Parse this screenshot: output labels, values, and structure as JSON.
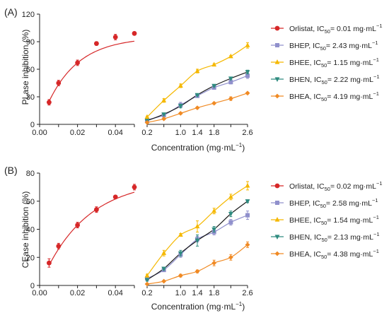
{
  "figure": {
    "panels": [
      {
        "tag": "(A)",
        "ylabel": "PLase inhibition (%)",
        "xlabel_main": "Concentration (mg·mL",
        "xlabel_sup": "−1",
        "xlabel_close": ")",
        "left_xticks": [
          "0.00",
          "0.02",
          "0.04"
        ],
        "right_xticks": [
          "0.2",
          "1.0",
          "1.4",
          "1.8",
          "2.6"
        ],
        "yticks": [
          "0",
          "30",
          "60",
          "90",
          "120"
        ],
        "legend": [
          {
            "name": "Orlistat",
            "ic50": "0.01"
          },
          {
            "name": "BHEP",
            "ic50": "2.43"
          },
          {
            "name": "BHEE",
            "ic50": "1.15"
          },
          {
            "name": "BHEN",
            "ic50": "2.22"
          },
          {
            "name": "BHEA",
            "ic50": "4.19"
          }
        ]
      },
      {
        "tag": "(B)",
        "ylabel": "CEase inhibition (%)",
        "xlabel_main": "Concentration (mg·mL",
        "xlabel_sup": "−1",
        "xlabel_close": ")",
        "left_xticks": [
          "0.00",
          "0.02",
          "0.04"
        ],
        "right_xticks": [
          "0.2",
          "1.0",
          "1.4",
          "1.8",
          "2.6"
        ],
        "yticks": [
          "0",
          "20",
          "40",
          "60",
          "80"
        ],
        "legend": [
          {
            "name": "Orlistat",
            "ic50": "0.02"
          },
          {
            "name": "BHEP",
            "ic50": "2.58"
          },
          {
            "name": "BHEE",
            "ic50": "1.54"
          },
          {
            "name": "BHEN",
            "ic50": "2.13"
          },
          {
            "name": "BHEA",
            "ic50": "4.38"
          }
        ]
      }
    ],
    "ic50_prefix": "IC",
    "ic50_sub": "50",
    "ic50_unit": "= ",
    "ic50_suffix": " mg·mL",
    "ic50_sup": "−1"
  },
  "chart_data": [
    {
      "type": "scatter",
      "panel": "(A)",
      "ylabel": "PLase inhibition (%)",
      "xlabel": "Concentration (mg·mL−1)",
      "ylim": [
        0,
        120
      ],
      "left_xlim": [
        0,
        0.05
      ],
      "right_xlim": [
        0.2,
        2.6
      ],
      "series": [
        {
          "name": "Orlistat, IC50= 0.01 mg·mL−1",
          "color": "#d62728",
          "marker": "circle",
          "x": [
            0.005,
            0.01,
            0.02,
            0.03,
            0.04,
            0.05
          ],
          "y": [
            24,
            45,
            67,
            88,
            95,
            99
          ],
          "err": [
            3,
            3,
            3,
            2,
            3,
            0
          ]
        },
        {
          "name": "BHEP, IC50= 2.43 mg·mL−1",
          "color": "#9090cc",
          "marker": "square",
          "x": [
            0.2,
            0.6,
            1.0,
            1.4,
            1.8,
            2.2,
            2.6
          ],
          "y": [
            5,
            10,
            21,
            31,
            40,
            46,
            53
          ],
          "err": [
            1,
            1,
            3,
            1,
            1,
            2,
            3
          ]
        },
        {
          "name": "BHEE, IC50= 1.15 mg·mL−1",
          "color": "#f5b800",
          "marker": "triangle-up",
          "x": [
            0.2,
            0.6,
            1.0,
            1.4,
            1.8,
            2.2,
            2.6
          ],
          "y": [
            8,
            26,
            42,
            58,
            65,
            74,
            86
          ],
          "err": [
            1,
            2,
            2,
            2,
            1,
            1,
            3
          ]
        },
        {
          "name": "BHEN, IC50= 2.22 mg·mL−1",
          "color": "#2e8b7f",
          "marker": "triangle-down",
          "x": [
            0.2,
            0.6,
            1.0,
            1.4,
            1.8,
            2.2,
            2.6
          ],
          "y": [
            4,
            11,
            20,
            32,
            42,
            50,
            57
          ],
          "err": [
            1,
            1,
            2,
            1,
            1,
            1,
            2
          ]
        },
        {
          "name": "BHEA, IC50= 4.19 mg·mL−1",
          "color": "#f08a24",
          "marker": "diamond",
          "x": [
            0.2,
            0.6,
            1.0,
            1.4,
            1.8,
            2.2,
            2.6
          ],
          "y": [
            2,
            6,
            12,
            18,
            23,
            28,
            34
          ],
          "err": [
            1,
            1,
            1,
            1,
            1,
            2,
            1
          ]
        }
      ]
    },
    {
      "type": "scatter",
      "panel": "(B)",
      "ylabel": "CEase inhibition (%)",
      "xlabel": "Concentration (mg·mL−1)",
      "ylim": [
        0,
        80
      ],
      "left_xlim": [
        0,
        0.05
      ],
      "right_xlim": [
        0.2,
        2.6
      ],
      "series": [
        {
          "name": "Orlistat, IC50= 0.02 mg·mL−1",
          "color": "#d62728",
          "marker": "circle",
          "x": [
            0.005,
            0.01,
            0.02,
            0.03,
            0.04,
            0.05
          ],
          "y": [
            16,
            28,
            43,
            54,
            63,
            70
          ],
          "err": [
            3,
            2,
            2,
            2,
            1,
            2
          ]
        },
        {
          "name": "BHEP, IC50= 2.58 mg·mL−1",
          "color": "#9090cc",
          "marker": "square",
          "x": [
            0.2,
            0.6,
            1.0,
            1.4,
            1.8,
            2.2,
            2.6
          ],
          "y": [
            5,
            11,
            22,
            33,
            38,
            45,
            50
          ],
          "err": [
            1,
            1,
            2,
            2,
            2,
            2,
            3
          ]
        },
        {
          "name": "BHEE, IC50= 1.54 mg·mL−1",
          "color": "#f5b800",
          "marker": "triangle-up",
          "x": [
            0.2,
            0.6,
            1.0,
            1.4,
            1.8,
            2.2,
            2.6
          ],
          "y": [
            7,
            23,
            36,
            42,
            53,
            63,
            71
          ],
          "err": [
            1,
            2,
            1,
            4,
            2,
            2,
            3
          ]
        },
        {
          "name": "BHEN, IC50= 2.13 mg·mL−1",
          "color": "#2e8b7f",
          "marker": "triangle-down",
          "x": [
            0.2,
            0.6,
            1.0,
            1.4,
            1.8,
            2.2,
            2.6
          ],
          "y": [
            4,
            12,
            23,
            32,
            40,
            51,
            60
          ],
          "err": [
            1,
            1,
            2,
            4,
            2,
            2,
            1
          ]
        },
        {
          "name": "BHEA, IC50= 4.38 mg·mL−1",
          "color": "#f08a24",
          "marker": "diamond",
          "x": [
            0.2,
            0.6,
            1.0,
            1.4,
            1.8,
            2.2,
            2.6
          ],
          "y": [
            1,
            3,
            7,
            10,
            16,
            20,
            29
          ],
          "err": [
            0,
            0,
            1,
            1,
            2,
            2,
            2
          ]
        }
      ]
    }
  ]
}
